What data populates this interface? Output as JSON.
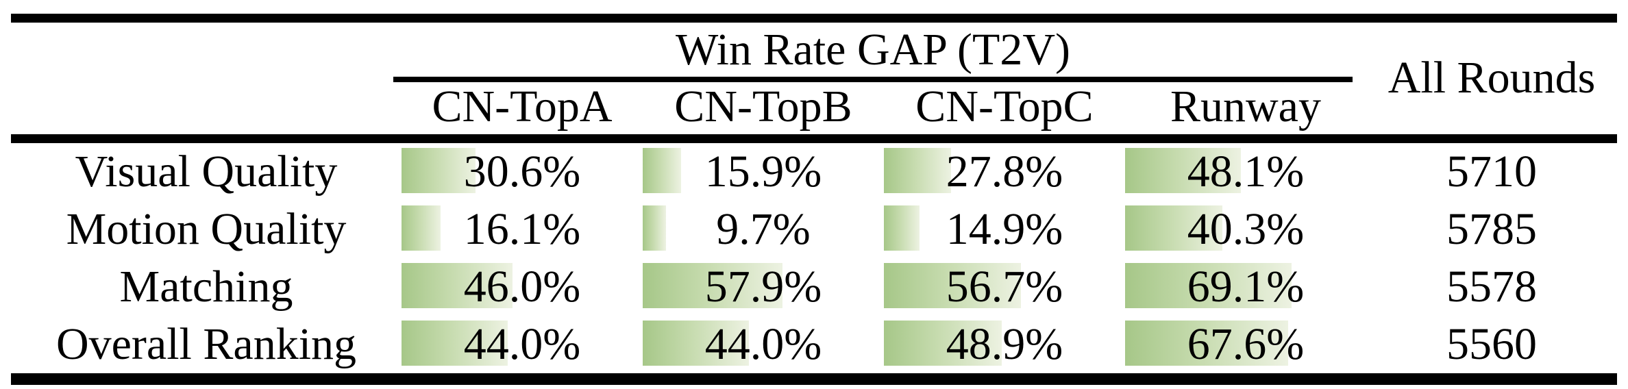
{
  "table": {
    "title": "Win Rate GAP (T2V)",
    "all_rounds_header": "All Rounds",
    "columns": [
      "CN-TopA",
      "CN-TopB",
      "CN-TopC",
      "Runway"
    ],
    "rows": [
      {
        "label": "Visual Quality",
        "cells": [
          {
            "text": "30.6%",
            "value": 30.6
          },
          {
            "text": "15.9%",
            "value": 15.9
          },
          {
            "text": "27.8%",
            "value": 27.8
          },
          {
            "text": "48.1%",
            "value": 48.1
          }
        ],
        "all_rounds": "5710"
      },
      {
        "label": "Motion Quality",
        "cells": [
          {
            "text": "16.1%",
            "value": 16.1
          },
          {
            "text": "9.7%",
            "value": 9.7
          },
          {
            "text": "14.9%",
            "value": 14.9
          },
          {
            "text": "40.3%",
            "value": 40.3
          }
        ],
        "all_rounds": "5785"
      },
      {
        "label": "Matching",
        "cells": [
          {
            "text": "46.0%",
            "value": 46.0
          },
          {
            "text": "57.9%",
            "value": 57.9
          },
          {
            "text": "56.7%",
            "value": 56.7
          },
          {
            "text": "69.1%",
            "value": 69.1
          }
        ],
        "all_rounds": "5578"
      },
      {
        "label": "Overall Ranking",
        "cells": [
          {
            "text": "44.0%",
            "value": 44.0
          },
          {
            "text": "44.0%",
            "value": 44.0
          },
          {
            "text": "48.9%",
            "value": 48.9
          },
          {
            "text": "67.6%",
            "value": 67.6
          }
        ],
        "all_rounds": "5560"
      }
    ],
    "colors": {
      "bar_gradient_left": "#a6c788",
      "bar_gradient_mid": "#c6dbae",
      "bar_gradient_right": "#edf2e2",
      "rule": "#000000",
      "text": "#000000",
      "background": "#ffffff"
    }
  },
  "chart_data": {
    "type": "table",
    "title": "Win Rate GAP (T2V)",
    "columns": [
      "CN-TopA",
      "CN-TopB",
      "CN-TopC",
      "Runway",
      "All Rounds"
    ],
    "row_labels": [
      "Visual Quality",
      "Motion Quality",
      "Matching",
      "Overall Ranking"
    ],
    "series": [
      {
        "name": "Visual Quality",
        "win_rate_gap_pct": [
          30.6,
          15.9,
          27.8,
          48.1
        ],
        "all_rounds": 5710
      },
      {
        "name": "Motion Quality",
        "win_rate_gap_pct": [
          16.1,
          9.7,
          14.9,
          40.3
        ],
        "all_rounds": 5785
      },
      {
        "name": "Matching",
        "win_rate_gap_pct": [
          46.0,
          57.9,
          56.7,
          69.1
        ],
        "all_rounds": 5578
      },
      {
        "name": "Overall Ranking",
        "win_rate_gap_pct": [
          44.0,
          44.0,
          48.9,
          67.6
        ],
        "all_rounds": 5560
      }
    ],
    "cell_bars": true,
    "bar_scale": "0-100% of column width",
    "layout": "booktabs table: thick top rule, partial rule under title spanning the four T2V columns, thick rule under column headers, thick bottom rule"
  }
}
